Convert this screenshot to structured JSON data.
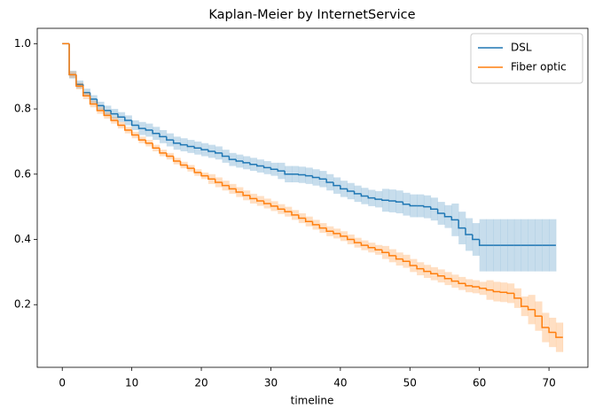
{
  "chart_data": {
    "type": "step",
    "title": "Kaplan-Meier by InternetService",
    "x_label": "timeline",
    "x": [
      0,
      1,
      2,
      3,
      4,
      5,
      6,
      7,
      8,
      9,
      10,
      11,
      12,
      13,
      14,
      15,
      16,
      17,
      18,
      19,
      20,
      21,
      22,
      23,
      24,
      25,
      26,
      27,
      28,
      29,
      30,
      31,
      32,
      33,
      34,
      35,
      36,
      37,
      38,
      39,
      40,
      41,
      42,
      43,
      44,
      45,
      46,
      47,
      48,
      49,
      50,
      51,
      52,
      53,
      54,
      55,
      56,
      57,
      58,
      59,
      60,
      61,
      62,
      63,
      64,
      65,
      66,
      67,
      68,
      69,
      70,
      71,
      72
    ],
    "series": [
      {
        "name": "DSL",
        "color": "#1f77b4",
        "values": [
          1.0,
          0.905,
          0.875,
          0.85,
          0.83,
          0.81,
          0.795,
          0.785,
          0.775,
          0.765,
          0.75,
          0.74,
          0.735,
          0.725,
          0.715,
          0.705,
          0.695,
          0.69,
          0.685,
          0.68,
          0.675,
          0.67,
          0.665,
          0.655,
          0.645,
          0.64,
          0.635,
          0.63,
          0.625,
          0.62,
          0.615,
          0.61,
          0.6,
          0.6,
          0.598,
          0.595,
          0.59,
          0.585,
          0.575,
          0.565,
          0.555,
          0.548,
          0.54,
          0.533,
          0.527,
          0.523,
          0.52,
          0.518,
          0.515,
          0.508,
          0.503,
          0.503,
          0.5,
          0.493,
          0.48,
          0.47,
          0.46,
          0.435,
          0.415,
          0.4,
          0.382,
          0.382,
          0.382,
          0.382,
          0.382,
          0.382,
          0.382,
          0.382,
          0.382,
          0.382,
          0.382,
          0.382,
          null
        ],
        "ci_upper": [
          1.0,
          0.917,
          0.887,
          0.862,
          0.842,
          0.822,
          0.81,
          0.8,
          0.79,
          0.78,
          0.765,
          0.76,
          0.755,
          0.745,
          0.735,
          0.725,
          0.715,
          0.71,
          0.705,
          0.7,
          0.695,
          0.69,
          0.685,
          0.675,
          0.665,
          0.66,
          0.655,
          0.65,
          0.645,
          0.64,
          0.635,
          0.635,
          0.625,
          0.625,
          0.623,
          0.62,
          0.615,
          0.61,
          0.6,
          0.59,
          0.58,
          0.573,
          0.565,
          0.558,
          0.552,
          0.548,
          0.555,
          0.553,
          0.55,
          0.543,
          0.538,
          0.538,
          0.535,
          0.528,
          0.515,
          0.505,
          0.51,
          0.485,
          0.465,
          0.45,
          0.462,
          0.462,
          0.462,
          0.462,
          0.462,
          0.462,
          0.462,
          0.462,
          0.462,
          0.462,
          0.462,
          0.462,
          null
        ],
        "ci_lower": [
          1.0,
          0.893,
          0.863,
          0.838,
          0.818,
          0.798,
          0.78,
          0.77,
          0.76,
          0.75,
          0.735,
          0.72,
          0.715,
          0.705,
          0.695,
          0.685,
          0.675,
          0.67,
          0.665,
          0.66,
          0.655,
          0.65,
          0.645,
          0.635,
          0.625,
          0.62,
          0.615,
          0.61,
          0.605,
          0.6,
          0.595,
          0.585,
          0.575,
          0.575,
          0.573,
          0.57,
          0.565,
          0.56,
          0.55,
          0.54,
          0.53,
          0.523,
          0.515,
          0.508,
          0.502,
          0.498,
          0.485,
          0.483,
          0.48,
          0.473,
          0.468,
          0.468,
          0.465,
          0.458,
          0.445,
          0.435,
          0.41,
          0.385,
          0.365,
          0.35,
          0.302,
          0.302,
          0.302,
          0.302,
          0.302,
          0.302,
          0.302,
          0.302,
          0.302,
          0.302,
          0.302,
          0.302,
          null
        ]
      },
      {
        "name": "Fiber optic",
        "color": "#ff7f0e",
        "values": [
          1.0,
          0.905,
          0.87,
          0.84,
          0.815,
          0.795,
          0.78,
          0.765,
          0.75,
          0.735,
          0.72,
          0.705,
          0.695,
          0.68,
          0.665,
          0.655,
          0.64,
          0.628,
          0.618,
          0.605,
          0.595,
          0.585,
          0.575,
          0.565,
          0.555,
          0.545,
          0.535,
          0.525,
          0.518,
          0.51,
          0.502,
          0.493,
          0.485,
          0.475,
          0.465,
          0.455,
          0.445,
          0.435,
          0.425,
          0.418,
          0.41,
          0.4,
          0.39,
          0.382,
          0.375,
          0.368,
          0.36,
          0.35,
          0.34,
          0.333,
          0.32,
          0.31,
          0.302,
          0.295,
          0.288,
          0.28,
          0.272,
          0.265,
          0.258,
          0.255,
          0.25,
          0.245,
          0.24,
          0.238,
          0.235,
          0.22,
          0.195,
          0.185,
          0.165,
          0.13,
          0.115,
          0.1,
          0.1
        ],
        "ci_upper": [
          1.0,
          0.915,
          0.88,
          0.85,
          0.825,
          0.805,
          0.79,
          0.775,
          0.76,
          0.745,
          0.73,
          0.715,
          0.705,
          0.69,
          0.675,
          0.665,
          0.65,
          0.638,
          0.628,
          0.615,
          0.605,
          0.6,
          0.59,
          0.58,
          0.57,
          0.56,
          0.55,
          0.54,
          0.533,
          0.525,
          0.517,
          0.508,
          0.5,
          0.49,
          0.48,
          0.47,
          0.46,
          0.45,
          0.44,
          0.433,
          0.425,
          0.415,
          0.405,
          0.397,
          0.39,
          0.383,
          0.38,
          0.37,
          0.36,
          0.353,
          0.34,
          0.33,
          0.322,
          0.315,
          0.308,
          0.3,
          0.292,
          0.285,
          0.278,
          0.275,
          0.27,
          0.275,
          0.27,
          0.268,
          0.265,
          0.25,
          0.225,
          0.23,
          0.21,
          0.175,
          0.16,
          0.145,
          0.145
        ],
        "ci_lower": [
          1.0,
          0.895,
          0.86,
          0.83,
          0.805,
          0.785,
          0.77,
          0.755,
          0.74,
          0.725,
          0.71,
          0.695,
          0.685,
          0.67,
          0.655,
          0.645,
          0.63,
          0.618,
          0.608,
          0.595,
          0.585,
          0.57,
          0.56,
          0.55,
          0.54,
          0.53,
          0.52,
          0.51,
          0.503,
          0.495,
          0.487,
          0.478,
          0.47,
          0.46,
          0.45,
          0.44,
          0.43,
          0.42,
          0.41,
          0.403,
          0.395,
          0.385,
          0.375,
          0.367,
          0.36,
          0.353,
          0.34,
          0.33,
          0.32,
          0.313,
          0.3,
          0.29,
          0.282,
          0.275,
          0.268,
          0.26,
          0.252,
          0.245,
          0.238,
          0.235,
          0.23,
          0.215,
          0.21,
          0.208,
          0.205,
          0.19,
          0.165,
          0.14,
          0.12,
          0.085,
          0.07,
          0.055,
          0.055
        ]
      }
    ],
    "xlim": [
      -3.6,
      75.6
    ],
    "xticks": [
      0,
      10,
      20,
      30,
      40,
      50,
      60,
      70
    ],
    "ylim": [
      0.008,
      1.047
    ],
    "yticks": [
      0.2,
      0.4,
      0.6,
      0.8,
      {
        "value": 1.0,
        "label": "1.0"
      }
    ],
    "legend": "upper right"
  }
}
